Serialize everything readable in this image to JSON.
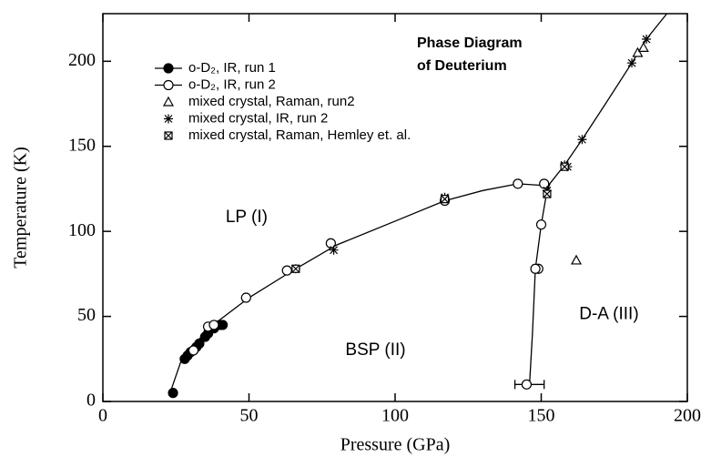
{
  "chart_data": {
    "type": "scatter",
    "title_lines": [
      "Phase  Diagram",
      "of  Deuterium"
    ],
    "xlabel": "Pressure (GPa)",
    "ylabel": "Temperature (K)",
    "xlim": [
      0,
      200
    ],
    "ylim": [
      0,
      228
    ],
    "xticks": [
      0,
      50,
      100,
      150,
      200
    ],
    "yticks": [
      0,
      50,
      100,
      150,
      200
    ],
    "annotations": [
      {
        "text": "LP (I)",
        "x": 42,
        "y": 108
      },
      {
        "text": "BSP (II)",
        "x": 83,
        "y": 30
      },
      {
        "text": "D-A (III)",
        "x": 163,
        "y": 51
      }
    ],
    "series": [
      {
        "name": "o-D₂, IR, run 1",
        "marker": "filled-circle",
        "color": "#000",
        "legend_line": true,
        "x": [
          24,
          28,
          29,
          30,
          32,
          33,
          35,
          36,
          38,
          40,
          41
        ],
        "values": [
          5,
          25,
          27,
          29,
          32,
          34,
          38,
          40,
          43,
          45,
          45
        ]
      },
      {
        "name": "o-D₂, IR, run 2",
        "marker": "open-circle",
        "color": "#000",
        "legend_line": true,
        "x": [
          31,
          36,
          38,
          49,
          63,
          78,
          117,
          142,
          151,
          150,
          149,
          148,
          145
        ],
        "values": [
          30,
          44,
          45,
          61,
          77,
          93,
          118,
          128,
          128,
          104,
          78,
          78,
          10
        ]
      },
      {
        "name": "mixed crystal, Raman, run2",
        "marker": "triangle",
        "color": "#000",
        "legend_line": false,
        "x": [
          162,
          183,
          185
        ],
        "values": [
          83,
          205,
          208
        ]
      },
      {
        "name": "mixed crystal, IR, run 2",
        "marker": "asterisk",
        "color": "#000",
        "legend_line": false,
        "x": [
          66,
          79,
          117,
          152,
          158,
          159,
          164,
          181,
          186
        ],
        "values": [
          78,
          89,
          120,
          124,
          139,
          138,
          154,
          199,
          213
        ]
      },
      {
        "name": "mixed crystal, Raman, Hemley et. al.",
        "marker": "boxed-x",
        "color": "#000",
        "legend_line": false,
        "x": [
          66,
          117,
          152,
          158
        ],
        "values": [
          78,
          119,
          122,
          138
        ]
      }
    ],
    "boundaries": [
      {
        "x": [
          23,
          25,
          27,
          30,
          35,
          40,
          50,
          65,
          80,
          100,
          117,
          130,
          142,
          151,
          153
        ],
        "values": [
          5,
          15,
          25,
          32,
          40,
          48,
          61,
          77,
          92,
          106,
          118,
          124,
          128,
          127,
          125
        ]
      },
      {
        "x": [
          146,
          147,
          148,
          150,
          152,
          153
        ],
        "values": [
          10,
          40,
          78,
          104,
          124,
          128
        ]
      },
      {
        "x": [
          152,
          158,
          164,
          172,
          181,
          186,
          193
        ],
        "values": [
          126,
          139,
          154,
          175,
          199,
          213,
          228
        ]
      }
    ],
    "error_bar": {
      "x": 146,
      "y": 10,
      "xerr": 5
    }
  }
}
